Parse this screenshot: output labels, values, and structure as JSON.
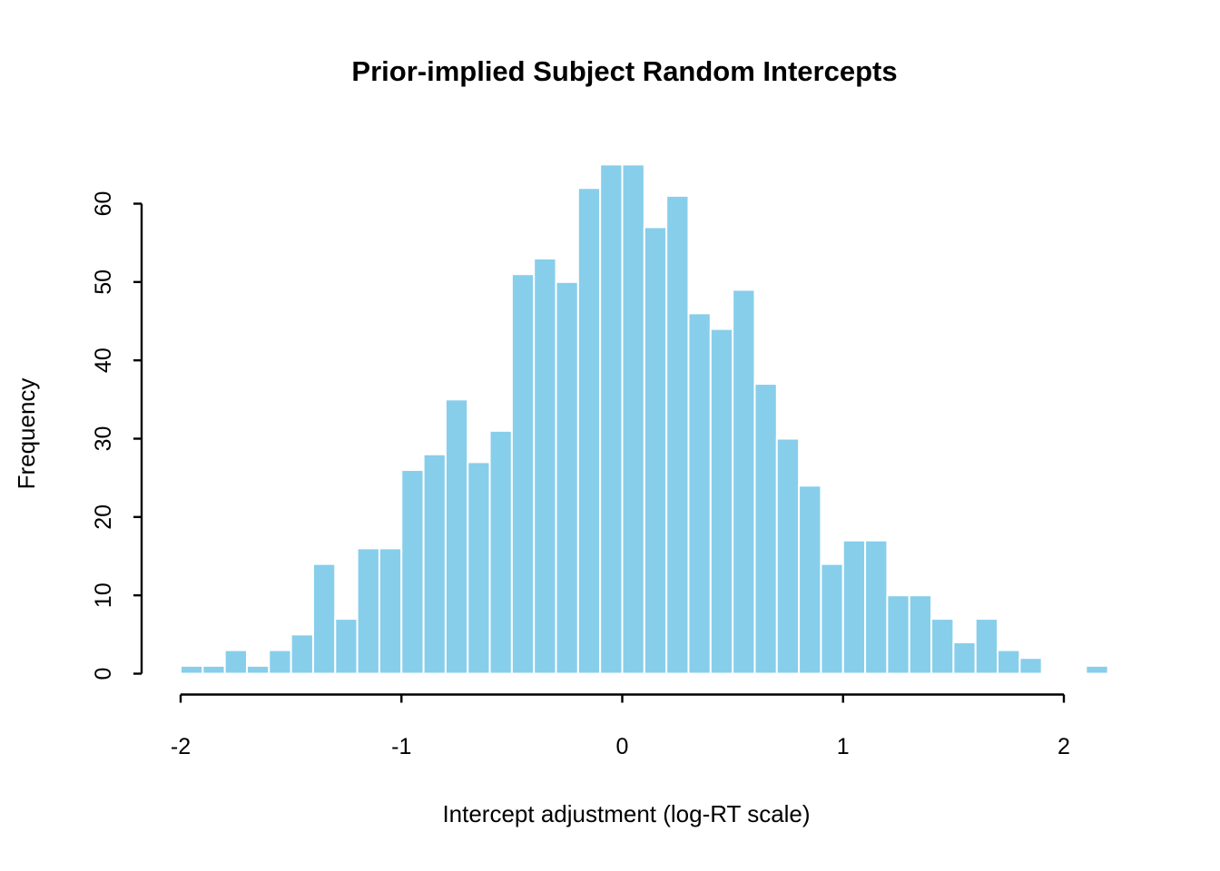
{
  "chart_data": {
    "type": "bar",
    "subtype": "histogram",
    "title": "Prior-implied Subject Random Intercepts",
    "xlabel": "Intercept adjustment (log-RT scale)",
    "ylabel": "Frequency",
    "bin_start": -2.0,
    "bin_width": 0.1,
    "counts": [
      1,
      1,
      3,
      1,
      3,
      5,
      14,
      7,
      16,
      16,
      26,
      28,
      35,
      27,
      31,
      51,
      53,
      50,
      62,
      65,
      65,
      57,
      61,
      46,
      44,
      49,
      37,
      30,
      24,
      14,
      17,
      17,
      10,
      10,
      7,
      4,
      7,
      3,
      2,
      0,
      0,
      1
    ],
    "x_ticks": [
      -2,
      -1,
      0,
      1,
      2
    ],
    "x_tick_labels": [
      "-2",
      "-1",
      "0",
      "1",
      "2"
    ],
    "y_ticks": [
      0,
      10,
      20,
      30,
      40,
      50,
      60
    ],
    "y_tick_labels": [
      "0",
      "10",
      "20",
      "30",
      "40",
      "50",
      "60"
    ],
    "xlim": [
      -2,
      2.2
    ],
    "ylim": [
      0,
      65
    ],
    "grid": false,
    "legend_position": "none",
    "bar_color": "#87CEEB",
    "bar_border_color": "#FFFFFF",
    "axis_color": "#000000",
    "text_color": "#000000",
    "background_color": "#FFFFFF"
  }
}
